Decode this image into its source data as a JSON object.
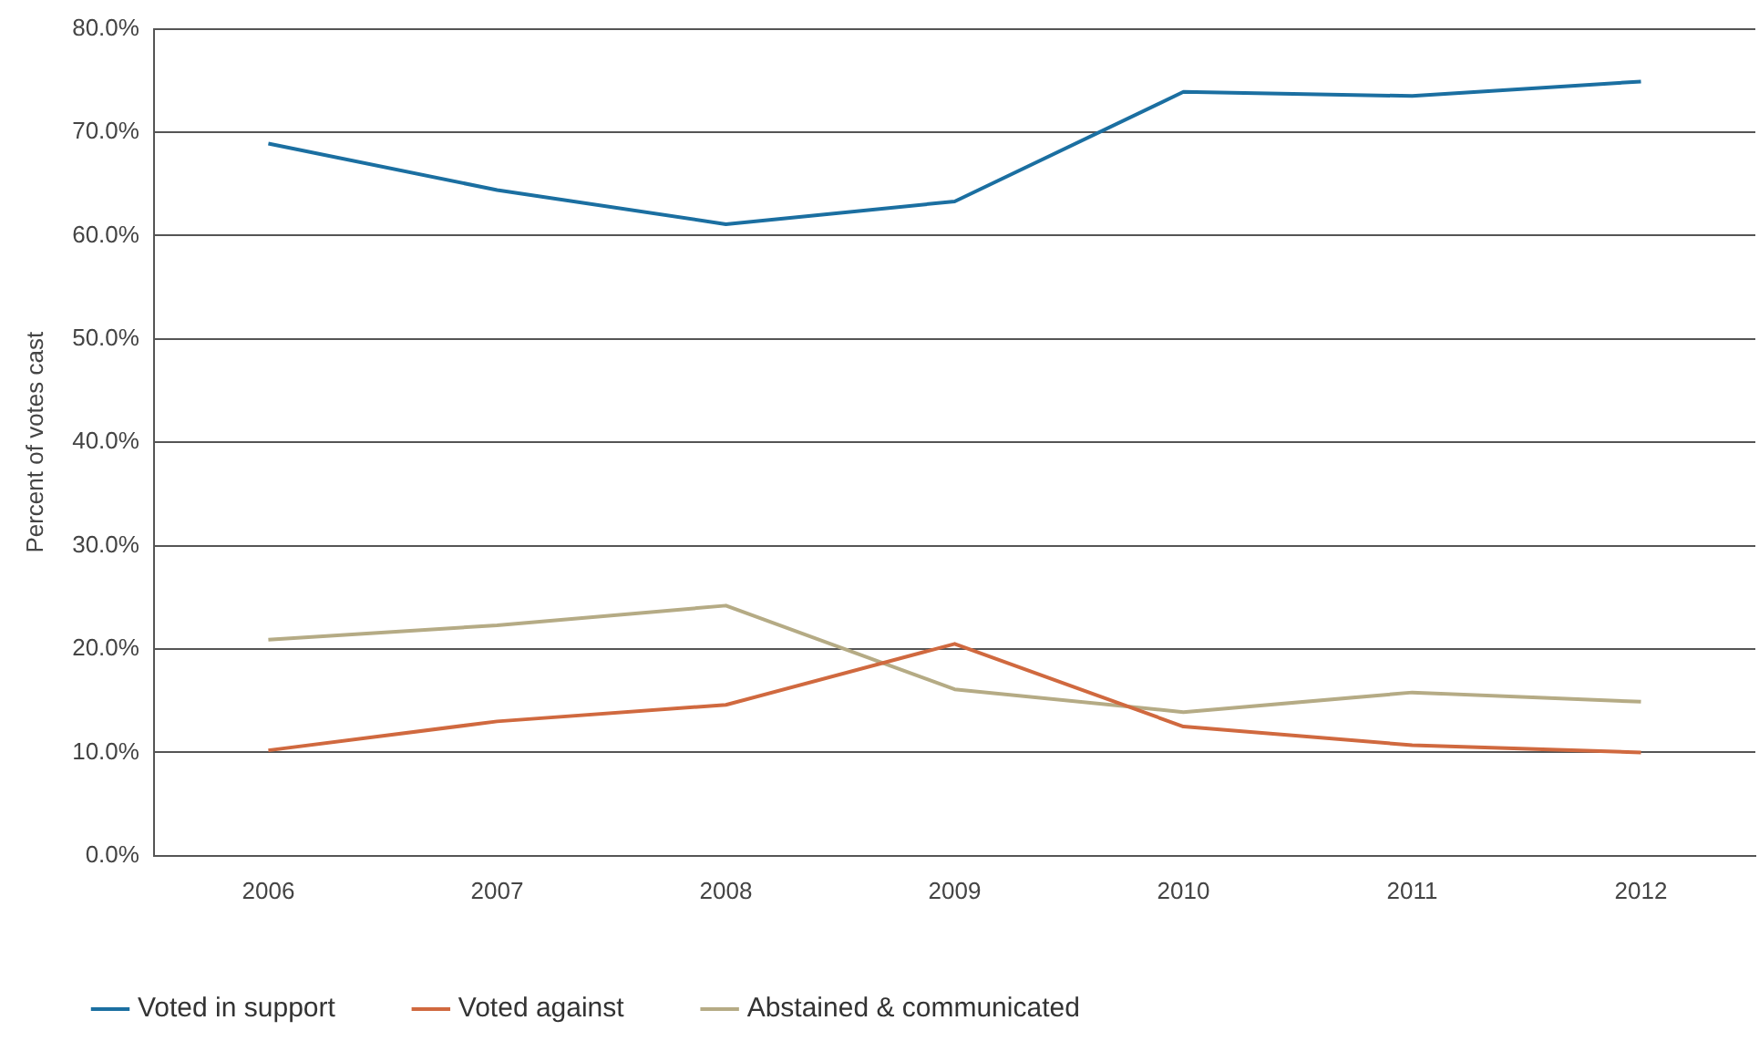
{
  "chart_data": {
    "type": "line",
    "ylabel": "Percent of votes cast",
    "categories": [
      "2006",
      "2007",
      "2008",
      "2009",
      "2010",
      "2011",
      "2012"
    ],
    "series": [
      {
        "name": "Voted in support",
        "color": "#1b6fa1",
        "values": [
          68.9,
          64.4,
          61.1,
          63.3,
          73.9,
          73.5,
          74.9
        ]
      },
      {
        "name": "Voted against",
        "color": "#d0693f",
        "values": [
          10.2,
          13.0,
          14.6,
          20.5,
          12.5,
          10.7,
          10.0
        ]
      },
      {
        "name": "Abstained & communicated",
        "color": "#b5ab85",
        "values": [
          20.9,
          22.3,
          24.2,
          16.1,
          13.9,
          15.8,
          14.9
        ]
      }
    ],
    "ylim": [
      0,
      80
    ],
    "yticks": [
      {
        "value": 0,
        "label": "0.0%"
      },
      {
        "value": 10,
        "label": "10.0%"
      },
      {
        "value": 20,
        "label": "20.0%"
      },
      {
        "value": 30,
        "label": "30.0%"
      },
      {
        "value": 40,
        "label": "40.0%"
      },
      {
        "value": 50,
        "label": "50.0%"
      },
      {
        "value": 60,
        "label": "60.0%"
      },
      {
        "value": 70,
        "label": "70.0%"
      },
      {
        "value": 80,
        "label": "80.0%"
      }
    ],
    "grid": "y",
    "legend": "bottom",
    "marker": "none",
    "line_style": "solid"
  }
}
